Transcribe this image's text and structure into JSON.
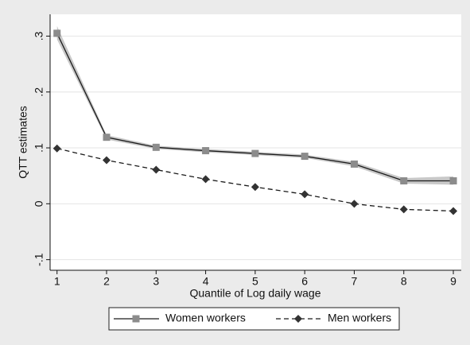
{
  "chart_data": {
    "type": "line",
    "xlabel": "Quantile of Log daily wage",
    "ylabel": "QTT estimates",
    "x": [
      1,
      2,
      3,
      4,
      5,
      6,
      7,
      8,
      9
    ],
    "xlim": [
      0.86,
      9.16
    ],
    "xticks": [
      1,
      2,
      3,
      4,
      5,
      6,
      7,
      8,
      9
    ],
    "ylim": [
      -0.119,
      0.339
    ],
    "yticks": [
      {
        "value": -0.1,
        "label": "-.1"
      },
      0,
      {
        "value": 0.1,
        "label": ".1"
      },
      {
        "value": 0.2,
        "label": ".2"
      },
      {
        "value": 0.3,
        "label": ".3"
      }
    ],
    "grid": true,
    "legend": "bottom",
    "series": [
      {
        "name": "Women workers",
        "color": "#1a1a1a",
        "marker_color": "#8c8c8c",
        "marker": "square",
        "dash": false,
        "band_color": "#c8c8c8",
        "values": [
          0.305,
          0.119,
          0.101,
          0.095,
          0.09,
          0.085,
          0.071,
          0.041,
          0.041
        ],
        "ci_lower": [
          0.294,
          0.115,
          0.098,
          0.092,
          0.087,
          0.082,
          0.067,
          0.036,
          0.034
        ],
        "ci_upper": [
          0.318,
          0.123,
          0.104,
          0.098,
          0.093,
          0.088,
          0.075,
          0.046,
          0.049
        ]
      },
      {
        "name": "Men workers",
        "color": "#1a1a1a",
        "marker_color": "#333333",
        "marker": "diamond",
        "dash": true,
        "values": [
          0.099,
          0.078,
          0.061,
          0.044,
          0.03,
          0.017,
          0.0,
          -0.01,
          -0.013
        ]
      }
    ]
  }
}
